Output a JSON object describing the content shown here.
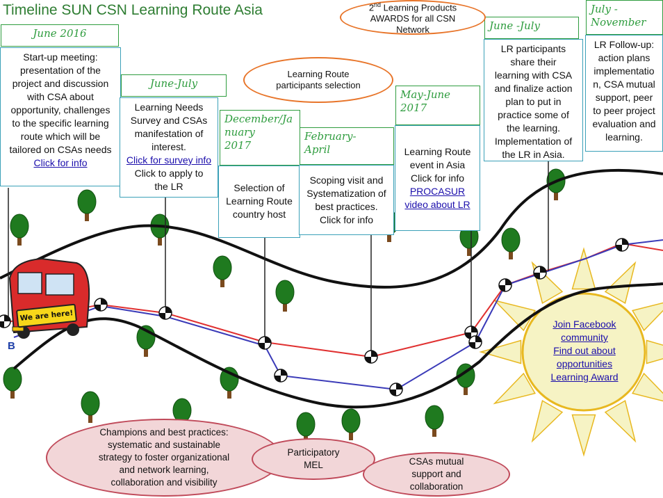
{
  "title": "Timeline SUN CSN Learning Route Asia",
  "milestones": [
    {
      "header": "June 2016",
      "lines": [
        "Start-up meeting:",
        "presentation of the",
        "project and discussion",
        "with CSA about",
        "opportunity, challenges",
        "to the specific learning",
        "route which will be",
        "tailored on CSAs needs"
      ],
      "link": "Click for info"
    },
    {
      "header": "June-July",
      "lines": [
        "Learning Needs",
        "Survey and CSAs",
        "manifestation of",
        "interest."
      ],
      "link": "Click for survey info",
      "after": [
        "Click to apply to",
        "the LR"
      ]
    },
    {
      "header_lines": [
        "December/Ja",
        "nuary",
        "2017"
      ],
      "lines": [
        "Selection of",
        "Learning Route",
        "country host"
      ]
    },
    {
      "header_lines": [
        "February-",
        "April"
      ],
      "lines": [
        "Scoping visit and",
        "Systematization of",
        "best practices.",
        "Click for info"
      ]
    },
    {
      "header_lines": [
        "May-June",
        "2017"
      ],
      "lines": [
        "Learning Route",
        "event in Asia",
        "Click for info"
      ],
      "link_lines": [
        "PROCASUR",
        "video about LR"
      ]
    },
    {
      "header": "June -July",
      "lines": [
        "LR participants",
        "share their",
        "learning with CSA",
        "and finalize action",
        "plan to put in",
        "practice some of",
        "the learning.",
        "Implementation of",
        "the LR in Asia."
      ]
    },
    {
      "header_lines": [
        "July -",
        "November"
      ],
      "lines": [
        "LR Follow-up:",
        "action plans",
        "implementatio",
        "n, CSA mutual",
        "support, peer",
        "to peer project",
        "evaluation and",
        "learning."
      ]
    }
  ],
  "awards": {
    "sup": "nd",
    "line1_num": "2",
    "line1_rest": " Learning Products",
    "line2": "AWARDS for all CSN",
    "line3": "Network"
  },
  "selection_oval": [
    "Learning Route",
    "participants selection"
  ],
  "sun_links": [
    "Join Facebook community",
    "Find out about opportunities",
    "Learning Award"
  ],
  "bottom_ovals": {
    "champions": [
      "Champions and best practices:",
      "systematic and sustainable",
      "strategy to foster organizational",
      "and network learning,",
      "collaboration and visibility"
    ],
    "mel": [
      "Participatory",
      "MEL"
    ],
    "csas": [
      "CSAs mutual",
      "support and",
      "collaboration"
    ]
  },
  "bus_sign": "We are here!",
  "road_letter": "B",
  "colors": {
    "accent_green": "#2e9c3e",
    "box_border": "#3aa0b8",
    "oval_orange": "#e8752a",
    "path_red": "#e03030",
    "path_blue": "#3a3ab8",
    "sun_fill": "#f6f3c4",
    "sun_ring": "#e8b820",
    "tree": "#1f7a1f",
    "trunk": "#7a4a1e",
    "pink": "#f2d6d8"
  }
}
